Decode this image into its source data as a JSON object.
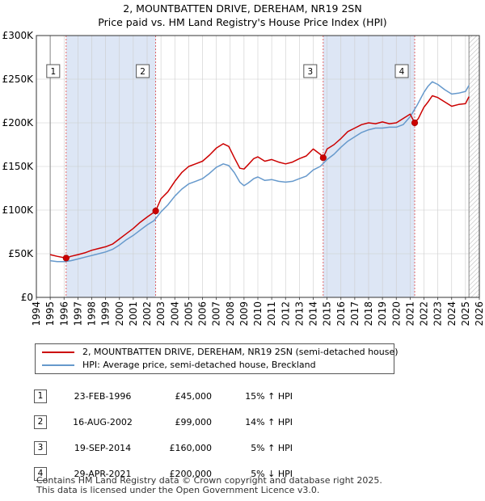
{
  "title_line1": "2, MOUNTBATTEN DRIVE, DEREHAM, NR19 2SN",
  "title_line2": "Price paid vs. HM Land Registry's House Price Index (HPI)",
  "legend": {
    "property": "2, MOUNTBATTEN DRIVE, DEREHAM, NR19 2SN (semi-detached house)",
    "hpi": "HPI: Average price, semi-detached house, Breckland"
  },
  "colors": {
    "property": "#cc0000",
    "hpi": "#6699cc",
    "shade": "#dde6f5",
    "grid": "#cccccc",
    "marker_line": "#dd4444"
  },
  "sales": [
    {
      "num": "1",
      "date": "23-FEB-1996",
      "price": "£45,000",
      "hpi": "15% ↑ HPI"
    },
    {
      "num": "2",
      "date": "16-AUG-2002",
      "price": "£99,000",
      "hpi": "14% ↑ HPI"
    },
    {
      "num": "3",
      "date": "19-SEP-2014",
      "price": "£160,000",
      "hpi": "5% ↑ HPI"
    },
    {
      "num": "4",
      "date": "29-APR-2021",
      "price": "£200,000",
      "hpi": "5% ↓ HPI"
    }
  ],
  "footer_line1": "Contains HM Land Registry data © Crown copyright and database right 2025.",
  "footer_line2": "This data is licensed under the Open Government Licence v3.0.",
  "chart_data": {
    "type": "line",
    "title": "2, MOUNTBATTEN DRIVE, DEREHAM, NR19 2SN",
    "subtitle": "Price paid vs. HM Land Registry's House Price Index (HPI)",
    "xlim": [
      1994,
      2026
    ],
    "ylim": [
      0,
      300000
    ],
    "x_ticks": [
      1994,
      1995,
      1996,
      1997,
      1998,
      1999,
      2000,
      2001,
      2002,
      2003,
      2004,
      2005,
      2006,
      2007,
      2008,
      2009,
      2010,
      2011,
      2012,
      2013,
      2014,
      2015,
      2016,
      2017,
      2018,
      2019,
      2020,
      2021,
      2022,
      2023,
      2024,
      2025,
      2026
    ],
    "y_ticks": [
      {
        "value": 0,
        "label": "£0"
      },
      {
        "value": 50000,
        "label": "£50K"
      },
      {
        "value": 100000,
        "label": "£100K"
      },
      {
        "value": 150000,
        "label": "£150K"
      },
      {
        "value": 200000,
        "label": "£200K"
      },
      {
        "value": 250000,
        "label": "£250K"
      },
      {
        "value": 300000,
        "label": "£300K"
      }
    ],
    "data_range": [
      1995.0,
      2025.25
    ],
    "shaded_periods": [
      [
        1996.15,
        2002.62
      ],
      [
        2014.72,
        2021.33
      ]
    ],
    "series": [
      {
        "name": "2, MOUNTBATTEN DRIVE, DEREHAM, NR19 2SN (semi-detached house)",
        "color": "#cc0000",
        "x": [
          1995.0,
          1995.5,
          1996.15,
          1996.5,
          1997.0,
          1997.5,
          1998.0,
          1998.5,
          1999.0,
          1999.5,
          2000.0,
          2000.5,
          2001.0,
          2001.5,
          2002.0,
          2002.62,
          2003.0,
          2003.5,
          2004.0,
          2004.5,
          2005.0,
          2005.5,
          2006.0,
          2006.5,
          2007.0,
          2007.5,
          2007.9,
          2008.3,
          2008.7,
          2009.0,
          2009.3,
          2009.7,
          2010.0,
          2010.5,
          2011.0,
          2011.5,
          2012.0,
          2012.5,
          2013.0,
          2013.5,
          2014.0,
          2014.5,
          2014.72,
          2015.0,
          2015.5,
          2016.0,
          2016.5,
          2017.0,
          2017.5,
          2018.0,
          2018.5,
          2019.0,
          2019.5,
          2020.0,
          2020.5,
          2021.0,
          2021.33,
          2021.6,
          2022.0,
          2022.3,
          2022.6,
          2023.0,
          2023.5,
          2024.0,
          2024.5,
          2025.0,
          2025.25
        ],
        "values": [
          49000,
          47000,
          45000,
          47000,
          49000,
          51000,
          54000,
          56000,
          58000,
          61000,
          67000,
          73000,
          79000,
          86000,
          92000,
          99000,
          113000,
          121000,
          133000,
          143000,
          150000,
          153000,
          156000,
          163000,
          171000,
          176000,
          173000,
          160000,
          148000,
          147000,
          152000,
          159000,
          161000,
          156000,
          158000,
          155000,
          153000,
          155000,
          159000,
          162000,
          170000,
          164000,
          160000,
          170000,
          175000,
          182000,
          190000,
          194000,
          198000,
          200000,
          199000,
          201000,
          199000,
          200000,
          205000,
          210000,
          200000,
          205000,
          218000,
          224000,
          231000,
          229000,
          224000,
          219000,
          221000,
          222000,
          230000
        ]
      },
      {
        "name": "HPI: Average price, semi-detached house, Breckland",
        "color": "#6699cc",
        "x": [
          1995.0,
          1995.5,
          1996.0,
          1996.5,
          1997.0,
          1997.5,
          1998.0,
          1998.5,
          1999.0,
          1999.5,
          2000.0,
          2000.5,
          2001.0,
          2001.5,
          2002.0,
          2002.5,
          2003.0,
          2003.5,
          2004.0,
          2004.5,
          2005.0,
          2005.5,
          2006.0,
          2006.5,
          2007.0,
          2007.5,
          2007.9,
          2008.3,
          2008.7,
          2009.0,
          2009.3,
          2009.7,
          2010.0,
          2010.5,
          2011.0,
          2011.5,
          2012.0,
          2012.5,
          2013.0,
          2013.5,
          2014.0,
          2014.5,
          2015.0,
          2015.5,
          2016.0,
          2016.5,
          2017.0,
          2017.5,
          2018.0,
          2018.5,
          2019.0,
          2019.5,
          2020.0,
          2020.5,
          2021.0,
          2021.5,
          2022.0,
          2022.3,
          2022.6,
          2023.0,
          2023.5,
          2024.0,
          2024.5,
          2025.0,
          2025.25
        ],
        "values": [
          42000,
          41000,
          41000,
          42000,
          44000,
          46000,
          48000,
          50000,
          52000,
          55000,
          60000,
          66000,
          71000,
          77000,
          83000,
          88000,
          98000,
          106000,
          116000,
          124000,
          130000,
          133000,
          136000,
          142000,
          149000,
          153000,
          151000,
          143000,
          132000,
          128000,
          131000,
          136000,
          138000,
          134000,
          135000,
          133000,
          132000,
          133000,
          136000,
          139000,
          146000,
          150000,
          158000,
          164000,
          172000,
          179000,
          184000,
          189000,
          192000,
          194000,
          194000,
          195000,
          195000,
          198000,
          207000,
          220000,
          235000,
          242000,
          247000,
          244000,
          238000,
          233000,
          234000,
          236000,
          243000
        ]
      }
    ],
    "markers": [
      {
        "label": "1",
        "x": 1996.15,
        "y": 45000
      },
      {
        "label": "2",
        "x": 2002.62,
        "y": 99000
      },
      {
        "label": "3",
        "x": 2014.72,
        "y": 160000
      },
      {
        "label": "4",
        "x": 2021.33,
        "y": 200000
      }
    ]
  }
}
